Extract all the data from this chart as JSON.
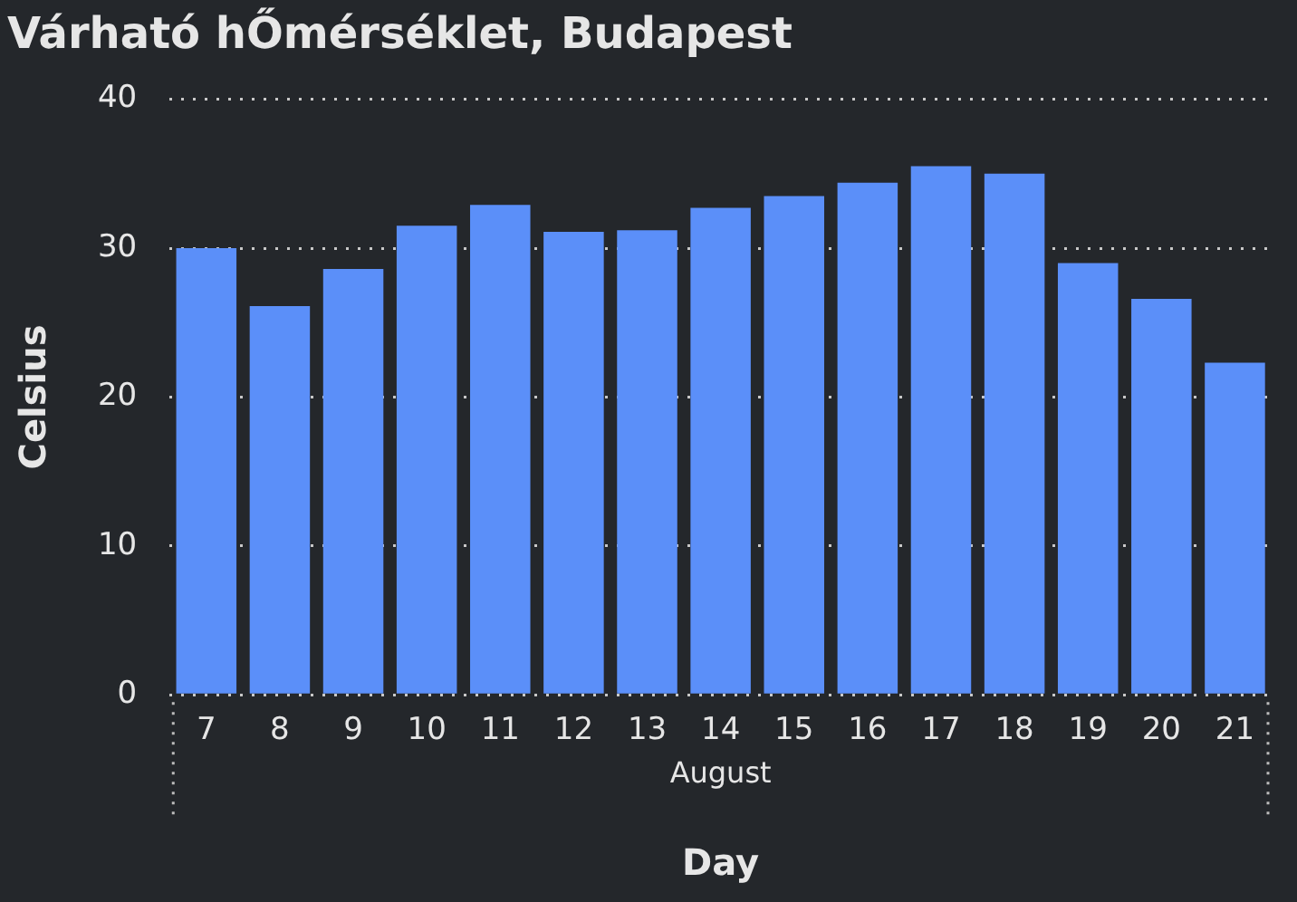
{
  "chart_data": {
    "type": "bar",
    "title": "Várható hŐmérséklet, Budapest",
    "xlabel": "Day",
    "ylabel": "Celsius",
    "categories": [
      "7",
      "8",
      "9",
      "10",
      "11",
      "12",
      "13",
      "14",
      "15",
      "16",
      "17",
      "18",
      "19",
      "20",
      "21"
    ],
    "values": [
      30.0,
      26.1,
      28.6,
      31.5,
      32.9,
      31.1,
      31.2,
      32.7,
      33.5,
      34.4,
      35.5,
      35.0,
      29.0,
      26.6,
      22.3
    ],
    "color": "#5b8ff9",
    "ylim": [
      0,
      40
    ],
    "yticks": [
      0,
      10,
      20,
      30,
      40
    ],
    "grid": "y",
    "legend": false,
    "annotations": [
      "August"
    ]
  }
}
